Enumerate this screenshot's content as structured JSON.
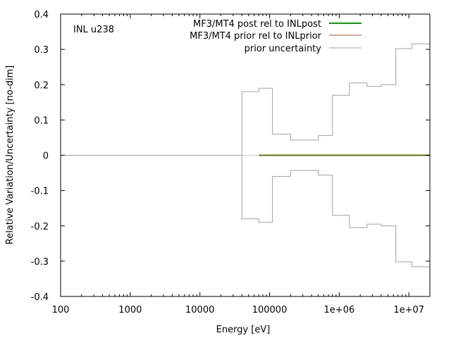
{
  "chart_data": {
    "type": "line",
    "title": "",
    "annotation": "INL u238",
    "xlabel": "Energy [eV]",
    "ylabel": "Relative Variation/Uncertainty [no-dim]",
    "xscale": "log",
    "xlim": [
      100,
      20000000
    ],
    "ylim": [
      -0.4,
      0.4
    ],
    "xticks": [
      {
        "value": 100,
        "label": "100"
      },
      {
        "value": 1000,
        "label": "1000"
      },
      {
        "value": 10000,
        "label": "10000"
      },
      {
        "value": 100000,
        "label": "100000"
      },
      {
        "value": 1000000,
        "label": "1e+06"
      },
      {
        "value": 10000000,
        "label": "1e+07"
      }
    ],
    "yticks": [
      {
        "value": 0.4,
        "label": "0.4"
      },
      {
        "value": 0.3,
        "label": "0.3"
      },
      {
        "value": 0.2,
        "label": "0.2"
      },
      {
        "value": 0.1,
        "label": "0.1"
      },
      {
        "value": 0,
        "label": "0"
      },
      {
        "value": -0.1,
        "label": "-0.1"
      },
      {
        "value": -0.2,
        "label": "-0.2"
      },
      {
        "value": -0.3,
        "label": "-0.3"
      },
      {
        "value": -0.4,
        "label": "-0.4"
      }
    ],
    "grid": false,
    "legend_position": "top-right",
    "series": [
      {
        "name": "MF3/MT4 post rel to INLpost",
        "color": "#00a000",
        "style": "line",
        "x": [
          70000,
          20000000
        ],
        "y": [
          0,
          0
        ]
      },
      {
        "name": "MF3/MT4 prior rel to INLprior",
        "color": "#a0522d",
        "style": "line",
        "x": [
          70000,
          20000000
        ],
        "y": [
          0,
          0
        ]
      },
      {
        "name": "prior uncertainty",
        "color": "#a0a0a0",
        "style": "step-band",
        "x": [
          100,
          40000,
          70000,
          110000,
          200000,
          500000,
          800000,
          1400000,
          2500000,
          4000000,
          6500000,
          11000000,
          20000000
        ],
        "y": [
          0,
          0.18,
          0.19,
          0.06,
          0.043,
          0.056,
          0.17,
          0.205,
          0.195,
          0.2,
          0.302,
          0.316,
          0.316
        ]
      }
    ]
  }
}
